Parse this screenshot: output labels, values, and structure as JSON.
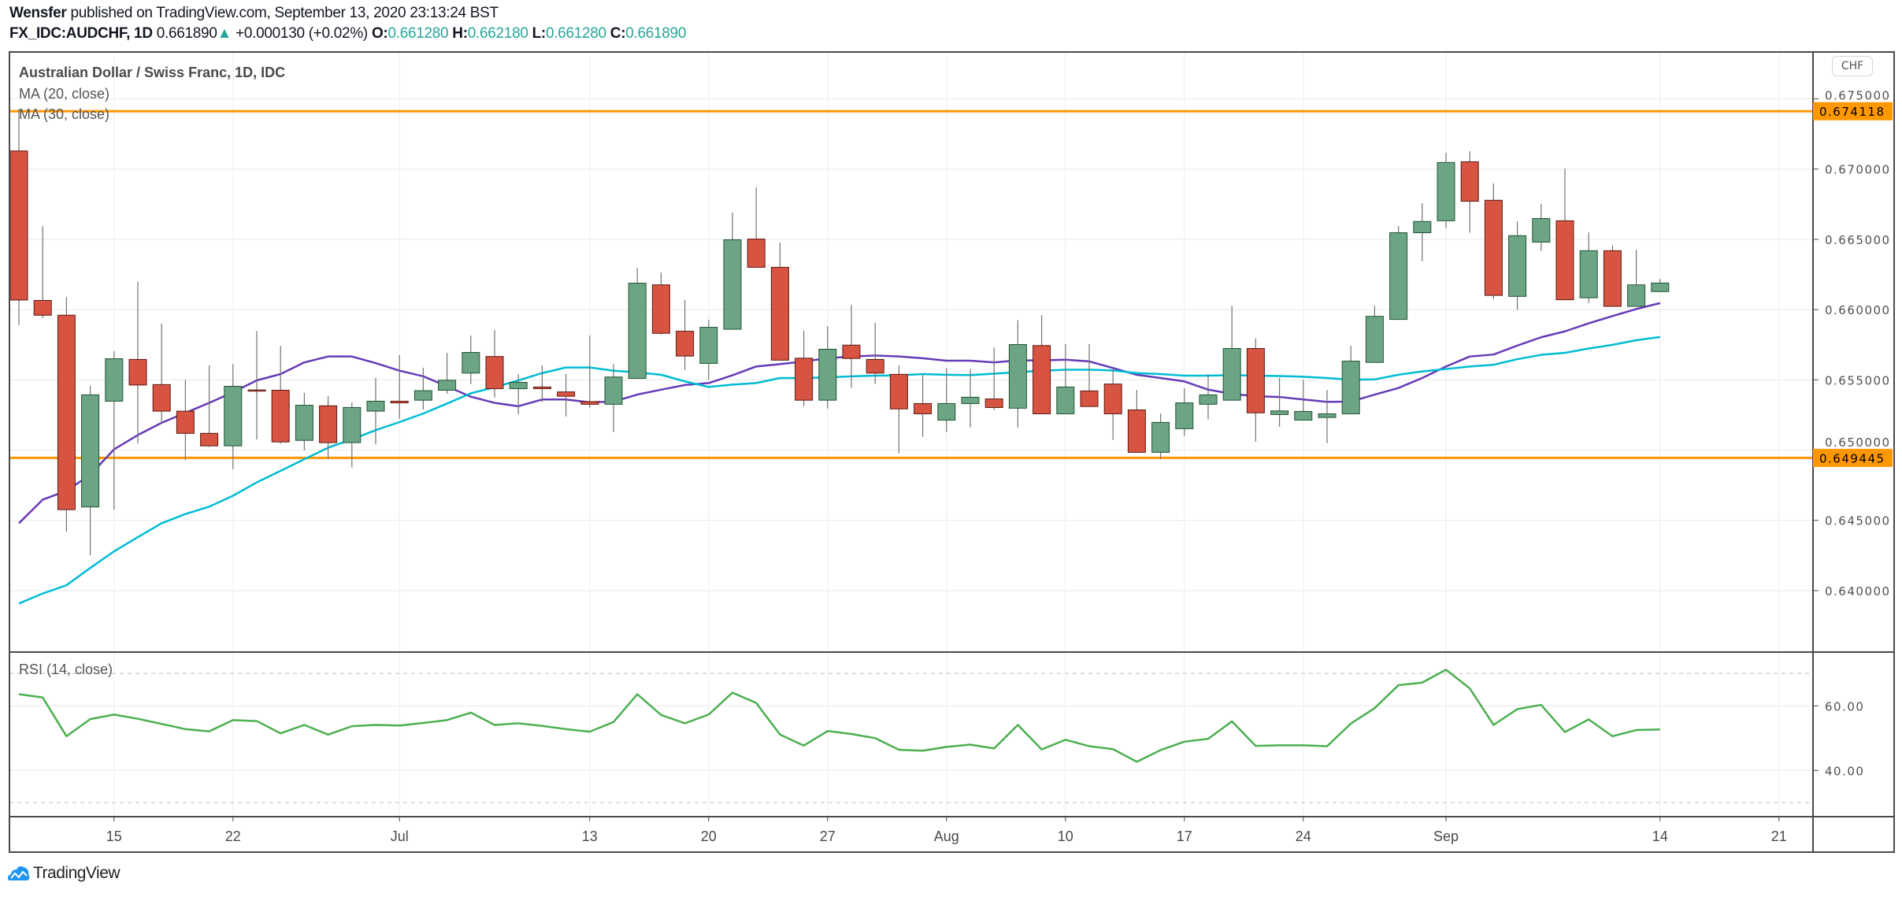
{
  "header": {
    "author": "Wensfer",
    "published": "published on TradingView.com, September 13, 2020 23:13:24 BST",
    "symbol": "FX_IDC:AUDCHF, 1D",
    "last": "0.661890",
    "arrow": "▲",
    "change": "+0.000130 (+0.02%)",
    "o_label": "O:",
    "o": "0.661280",
    "h_label": "H:",
    "h": "0.662180",
    "l_label": "L:",
    "l": "0.661280",
    "c_label": "C:",
    "c": "0.661890"
  },
  "legend": {
    "title": "Australian Dollar / Swiss Franc, 1D, IDC",
    "ma20": "MA (20, close)",
    "ma30": "MA (30, close)",
    "rsi": "RSI (14, close)"
  },
  "currency": "CHF",
  "logo": "TradingView",
  "colors": {
    "up": "#6BA583",
    "up_border": "#225437",
    "down": "#D75442",
    "down_border": "#5B1A13",
    "wick": "#737375",
    "ma20": "#673AB7",
    "ma30": "#00BCD4",
    "rsi": "#4CAF50",
    "level": "#FF9800",
    "teal": "#26a69a"
  },
  "chart_data": {
    "type": "candlestick",
    "price_axis": {
      "ticks": [
        "0.675000",
        "0.670000",
        "0.665000",
        "0.660000",
        "0.655000",
        "0.650000",
        "0.645000",
        "0.640000"
      ],
      "range": [
        0.6365,
        0.6768
      ]
    },
    "levels": [
      {
        "label": "0.674118",
        "value": 0.674118
      },
      {
        "label": "0.649445",
        "value": 0.649445
      }
    ],
    "time_labels": [
      {
        "label": "15",
        "bar": 4
      },
      {
        "label": "22",
        "bar": 9
      },
      {
        "label": "Jul",
        "bar": 16
      },
      {
        "label": "13",
        "bar": 24
      },
      {
        "label": "20",
        "bar": 29
      },
      {
        "label": "27",
        "bar": 34
      },
      {
        "label": "Aug",
        "bar": 39
      },
      {
        "label": "10",
        "bar": 44
      },
      {
        "label": "17",
        "bar": 49
      },
      {
        "label": "24",
        "bar": 54
      },
      {
        "label": "Sep",
        "bar": 60
      },
      {
        "label": "14",
        "bar": 69
      },
      {
        "label": "21",
        "bar": 74
      }
    ],
    "ohlc": [
      [
        0.67129,
        0.6743,
        0.6589,
        0.66068
      ],
      [
        0.66065,
        0.66594,
        0.6594,
        0.6596
      ],
      [
        0.6596,
        0.66089,
        0.6442,
        0.64576
      ],
      [
        0.64595,
        0.65456,
        0.6425,
        0.65393
      ],
      [
        0.65348,
        0.65704,
        0.64576,
        0.6565
      ],
      [
        0.65645,
        0.66197,
        0.65046,
        0.65463
      ],
      [
        0.65466,
        0.659,
        0.65194,
        0.65277
      ],
      [
        0.65277,
        0.65501,
        0.64928,
        0.65119
      ],
      [
        0.65119,
        0.65603,
        0.65022,
        0.6503
      ],
      [
        0.6503,
        0.65612,
        0.64864,
        0.65454
      ],
      [
        0.65428,
        0.65848,
        0.65076,
        0.65426
      ],
      [
        0.65426,
        0.65742,
        0.65046,
        0.65058
      ],
      [
        0.65069,
        0.65407,
        0.64998,
        0.65319
      ],
      [
        0.65315,
        0.65383,
        0.64935,
        0.65053
      ],
      [
        0.65053,
        0.65338,
        0.64876,
        0.65303
      ],
      [
        0.65277,
        0.65513,
        0.65041,
        0.65348
      ],
      [
        0.65348,
        0.65676,
        0.65223,
        0.65336
      ],
      [
        0.65355,
        0.65586,
        0.65289,
        0.65423
      ],
      [
        0.65426,
        0.65692,
        0.65402,
        0.65497
      ],
      [
        0.65548,
        0.65815,
        0.6547,
        0.65695
      ],
      [
        0.65666,
        0.65855,
        0.65374,
        0.65437
      ],
      [
        0.65437,
        0.65541,
        0.65253,
        0.65482
      ],
      [
        0.65449,
        0.65603,
        0.65341,
        0.65437
      ],
      [
        0.65414,
        0.65541,
        0.65239,
        0.65383
      ],
      [
        0.65345,
        0.65815,
        0.653,
        0.65326
      ],
      [
        0.65326,
        0.65612,
        0.65128,
        0.6552
      ],
      [
        0.6551,
        0.66296,
        0.6551,
        0.66188
      ],
      [
        0.66176,
        0.66263,
        0.65822,
        0.65831
      ],
      [
        0.65846,
        0.66068,
        0.6557,
        0.65669
      ],
      [
        0.65617,
        0.65928,
        0.655,
        0.65874
      ],
      [
        0.6586,
        0.6669,
        0.6586,
        0.66497
      ],
      [
        0.66502,
        0.6687,
        0.66301,
        0.66301
      ],
      [
        0.66301,
        0.66476,
        0.6564,
        0.6564
      ],
      [
        0.65654,
        0.65848,
        0.65312,
        0.65355
      ],
      [
        0.65355,
        0.65883,
        0.65296,
        0.65718
      ],
      [
        0.65747,
        0.66034,
        0.65442,
        0.65652
      ],
      [
        0.65645,
        0.65905,
        0.6547,
        0.65548
      ],
      [
        0.65539,
        0.65603,
        0.64977,
        0.65293
      ],
      [
        0.65331,
        0.65541,
        0.65095,
        0.65258
      ],
      [
        0.65213,
        0.65584,
        0.65128,
        0.65331
      ],
      [
        0.65331,
        0.65579,
        0.65161,
        0.65376
      ],
      [
        0.65364,
        0.6573,
        0.65284,
        0.65303
      ],
      [
        0.65298,
        0.65925,
        0.65161,
        0.65751
      ],
      [
        0.65744,
        0.65961,
        0.65258,
        0.65258
      ],
      [
        0.65258,
        0.65754,
        0.65258,
        0.65449
      ],
      [
        0.65421,
        0.65754,
        0.6531,
        0.6531
      ],
      [
        0.6547,
        0.65574,
        0.65072,
        0.65258
      ],
      [
        0.65286,
        0.65428,
        0.64984,
        0.64984
      ],
      [
        0.64984,
        0.6526,
        0.64935,
        0.65197
      ],
      [
        0.65152,
        0.6544,
        0.651,
        0.65336
      ],
      [
        0.65326,
        0.65541,
        0.65218,
        0.65393
      ],
      [
        0.65355,
        0.66027,
        0.65355,
        0.65723
      ],
      [
        0.65723,
        0.65794,
        0.6506,
        0.65265
      ],
      [
        0.65253,
        0.65513,
        0.65166,
        0.65279
      ],
      [
        0.65213,
        0.655,
        0.65213,
        0.65275
      ],
      [
        0.65232,
        0.65428,
        0.6505,
        0.65258
      ],
      [
        0.65258,
        0.65742,
        0.65258,
        0.65633
      ],
      [
        0.65624,
        0.66027,
        0.65624,
        0.65952
      ],
      [
        0.6593,
        0.66594,
        0.6593,
        0.66547
      ],
      [
        0.66547,
        0.66757,
        0.66344,
        0.66627
      ],
      [
        0.66632,
        0.67115,
        0.6658,
        0.67047
      ],
      [
        0.67052,
        0.67127,
        0.66547,
        0.66771
      ],
      [
        0.66778,
        0.66898,
        0.66075,
        0.66101
      ],
      [
        0.66094,
        0.66629,
        0.65997,
        0.66526
      ],
      [
        0.6648,
        0.66752,
        0.66417,
        0.66648
      ],
      [
        0.66632,
        0.67004,
        0.6607,
        0.6607
      ],
      [
        0.66084,
        0.66549,
        0.66046,
        0.66419
      ],
      [
        0.66419,
        0.66457,
        0.66023,
        0.66023
      ],
      [
        0.66023,
        0.66424,
        0.66023,
        0.66176
      ],
      [
        0.66128,
        0.66218,
        0.66128,
        0.66189
      ]
    ],
    "ma20": [
      0.64479,
      0.64647,
      0.6471,
      0.64824,
      0.65005,
      0.65107,
      0.65194,
      0.65265,
      0.65336,
      0.65411,
      0.65496,
      0.65541,
      0.65624,
      0.65666,
      0.65666,
      0.65619,
      0.65565,
      0.65525,
      0.65454,
      0.6538,
      0.65336,
      0.65312,
      0.6536,
      0.6536,
      0.6534,
      0.65345,
      0.65395,
      0.6543,
      0.65463,
      0.65477,
      0.65532,
      0.65595,
      0.65612,
      0.65631,
      0.65654,
      0.65666,
      0.65673,
      0.65666,
      0.65654,
      0.65636,
      0.65636,
      0.65624,
      0.65638,
      0.65638,
      0.65643,
      0.65631,
      0.65584,
      0.65536,
      0.65513,
      0.65489,
      0.6543,
      0.654,
      0.65383,
      0.65378,
      0.6536,
      0.65343,
      0.65345,
      0.65395,
      0.65442,
      0.65513,
      0.65595,
      0.65666,
      0.6568,
      0.65744,
      0.65803,
      0.65845,
      0.65902,
      0.65954,
      0.66004,
      0.66046
    ],
    "ma30": [
      0.63908,
      0.63979,
      0.64038,
      0.64161,
      0.64279,
      0.6438,
      0.64479,
      0.64545,
      0.64597,
      0.64675,
      0.6477,
      0.64852,
      0.64935,
      0.65017,
      0.65076,
      0.65142,
      0.65199,
      0.6526,
      0.65331,
      0.65404,
      0.65447,
      0.65496,
      0.65548,
      0.65588,
      0.65588,
      0.65565,
      0.65553,
      0.65536,
      0.65489,
      0.65449,
      0.65466,
      0.65477,
      0.65513,
      0.65513,
      0.65518,
      0.65525,
      0.6553,
      0.65532,
      0.65541,
      0.65536,
      0.65534,
      0.65544,
      0.65555,
      0.65565,
      0.65572,
      0.65572,
      0.65567,
      0.65548,
      0.65541,
      0.6553,
      0.6553,
      0.65534,
      0.6553,
      0.65527,
      0.65522,
      0.65513,
      0.65501,
      0.65503,
      0.65536,
      0.6556,
      0.65577,
      0.65595,
      0.65607,
      0.65647,
      0.65678,
      0.65692,
      0.65723,
      0.65749,
      0.65782,
      0.65805
    ],
    "rsi": {
      "ticks": [
        "60.00",
        "40.00"
      ],
      "bands": [
        70,
        30
      ],
      "values": [
        63.6,
        62.6,
        50.6,
        55.9,
        57.3,
        56.0,
        54.4,
        52.8,
        52.1,
        55.6,
        55.3,
        51.5,
        54.1,
        51.1,
        53.7,
        54.1,
        53.9,
        54.7,
        55.6,
        57.9,
        54.1,
        54.6,
        53.8,
        52.8,
        52.0,
        55.0,
        63.6,
        57.2,
        54.6,
        57.3,
        64.1,
        60.9,
        51.1,
        47.7,
        52.2,
        51.3,
        50.0,
        46.4,
        46.1,
        47.3,
        48.0,
        46.8,
        54.1,
        46.5,
        49.5,
        47.5,
        46.6,
        42.7,
        46.3,
        48.9,
        49.8,
        55.2,
        47.6,
        47.8,
        47.8,
        47.5,
        54.5,
        59.3,
        66.4,
        67.2,
        71.2,
        65.4,
        54.1,
        59.0,
        60.3,
        51.9,
        55.8,
        50.6,
        52.5,
        52.7
      ]
    }
  }
}
